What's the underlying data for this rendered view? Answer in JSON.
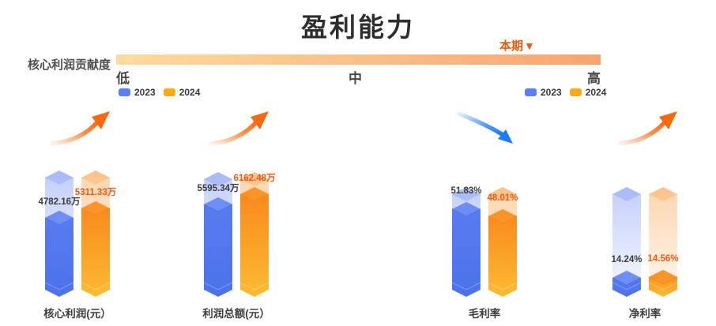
{
  "header": {
    "title": "盈利能力"
  },
  "gauge": {
    "label": "核心利润贡献度",
    "marker_label": "本期",
    "marker_icon": "▼",
    "marker_color": "#ed5a07",
    "scale_low": "低",
    "scale_mid": "中",
    "scale_high": "高",
    "gradient_from": "#fcdba0",
    "gradient_to": "#f9a470"
  },
  "legend": {
    "items": [
      {
        "label": "2023",
        "color": "#5b7ff2"
      },
      {
        "label": "2024",
        "color": "#fbaa17"
      }
    ]
  },
  "chart_data": {
    "type": "bar",
    "title": "盈利能力",
    "series_names": [
      "2023",
      "2024"
    ],
    "categories": [
      "核心利润(元）",
      "利润总额(元）",
      "毛利率",
      "净利率"
    ],
    "legend_position": "top-left and top-right",
    "grid": false,
    "groups": [
      {
        "category": "核心利润(元）",
        "values": [
          4782.16,
          5311.33
        ],
        "labels": [
          "4782.16万",
          "5311.33万"
        ],
        "ymax": 7000,
        "trend": "up"
      },
      {
        "category": "利润总额(元）",
        "values": [
          5595.34,
          6162.48
        ],
        "labels": [
          "5595.34万",
          "6162.48万"
        ],
        "ymax": 7000,
        "trend": "up"
      },
      {
        "category": "毛利率",
        "values": [
          51.83,
          48.01
        ],
        "labels": [
          "51.83%",
          "48.01%"
        ],
        "ymax": 60,
        "trend": "down"
      },
      {
        "category": "净利率",
        "values": [
          14.24,
          14.56
        ],
        "labels": [
          "14.24%",
          "14.56%"
        ],
        "ymax": 60,
        "trend": "up"
      }
    ],
    "colors": {
      "series_2023": {
        "body_top": "#587cf1",
        "body_bottom": "#4c72ea",
        "cap": "#6e8ef6",
        "edge": "#3d63d8",
        "ghost": "#6e8cf3"
      },
      "series_2024": {
        "body_top": "#f9861c",
        "body_bottom": "#fcbb33",
        "cap": "#fa9426",
        "edge": "#ef7a10",
        "ghost": "#fa9a3c"
      },
      "label_2023": "#3c3c3c",
      "label_2024": "#f4580c",
      "trend_up": "#f9690f",
      "trend_down": "#1e7bf2"
    }
  }
}
